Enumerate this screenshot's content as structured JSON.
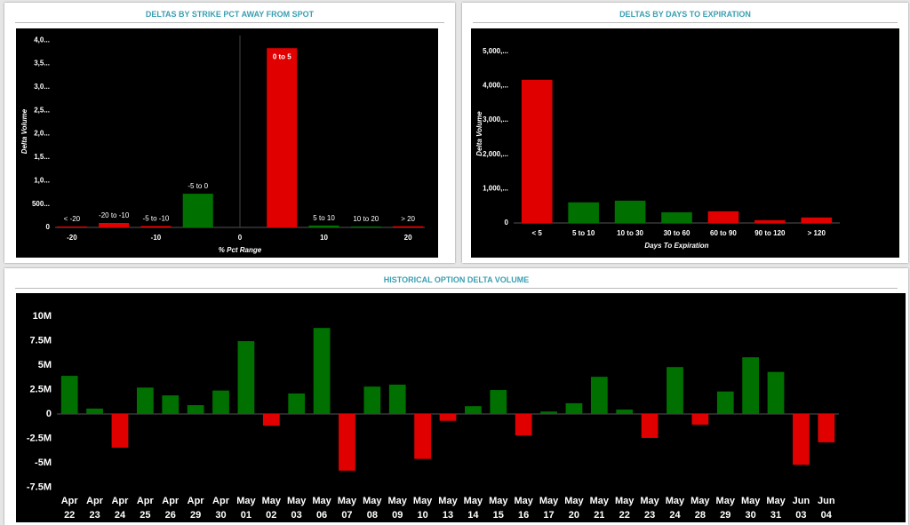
{
  "chart_data": [
    {
      "type": "bar",
      "title": "DELTAS BY STRIKE PCT AWAY FROM SPOT",
      "x_label": "% Pct Range",
      "y_label": "Delta Volume",
      "x": [
        -20,
        -15,
        -10,
        -5,
        5,
        10,
        15,
        20
      ],
      "bar_labels": [
        "< -20",
        "-20 to -10",
        "-5 to -10",
        "-5 to 0",
        "0 to 5",
        "5 to 10",
        "10 to 20",
        "> 20"
      ],
      "values": [
        20,
        95,
        30,
        720,
        3830,
        40,
        20,
        25
      ],
      "colors": [
        "#e00000",
        "#e00000",
        "#e00000",
        "#007000",
        "#e00000",
        "#007000",
        "#007000",
        "#e00000"
      ],
      "xlim": [
        -22,
        22
      ],
      "xticks": [
        -20,
        -10,
        0,
        10,
        20
      ],
      "ylim": [
        0,
        4100
      ],
      "yticks": [
        0,
        {
          "value": 500,
          "label": "500..."
        },
        {
          "value": 1000,
          "label": "1,0..."
        },
        {
          "value": 1500,
          "label": "1,5..."
        },
        {
          "value": 2000,
          "label": "2,0..."
        },
        {
          "value": 2500,
          "label": "2,5..."
        },
        {
          "value": 3000,
          "label": "3,0..."
        },
        {
          "value": 3500,
          "label": "3,5..."
        },
        {
          "value": 4000,
          "label": "4,0..."
        }
      ]
    },
    {
      "type": "bar",
      "title": "DELTAS BY DAYS TO EXPIRATION",
      "x_label": "Days To Expiration",
      "y_label": "Delta Volume",
      "categories": [
        "< 5",
        "5 to 10",
        "10 to 30",
        "30 to 60",
        "60 to 90",
        "90 to 120",
        "> 120"
      ],
      "values": [
        4170,
        600,
        650,
        310,
        340,
        80,
        160
      ],
      "colors": [
        "#e00000",
        "#007000",
        "#007000",
        "#007000",
        "#e00000",
        "#e00000",
        "#e00000"
      ],
      "ylim": [
        0,
        5200
      ],
      "yticks": [
        0,
        {
          "value": 1000,
          "label": "1,000,..."
        },
        {
          "value": 2000,
          "label": "2,000,..."
        },
        {
          "value": 3000,
          "label": "3,000,..."
        },
        {
          "value": 4000,
          "label": "4,000,..."
        },
        {
          "value": 5000,
          "label": "5,000,..."
        }
      ]
    },
    {
      "type": "bar",
      "title": "HISTORICAL OPTION DELTA VOLUME",
      "categories": [
        "Apr 22",
        "Apr 23",
        "Apr 24",
        "Apr 25",
        "Apr 26",
        "Apr 29",
        "Apr 30",
        "May 01",
        "May 02",
        "May 03",
        "May 06",
        "May 07",
        "May 08",
        "May 09",
        "May 10",
        "May 13",
        "May 14",
        "May 15",
        "May 16",
        "May 17",
        "May 20",
        "May 21",
        "May 22",
        "May 23",
        "May 24",
        "May 28",
        "May 29",
        "May 30",
        "May 31",
        "Jun 03",
        "Jun 04"
      ],
      "values": [
        3900000,
        550000,
        -3450000,
        2700000,
        1900000,
        900000,
        2400000,
        7450000,
        -1200000,
        2100000,
        8800000,
        -5800000,
        2800000,
        3000000,
        -4600000,
        -700000,
        800000,
        2450000,
        -2200000,
        250000,
        1100000,
        3800000,
        450000,
        -2450000,
        4800000,
        -1100000,
        2300000,
        5800000,
        4300000,
        -5200000,
        -2900000
      ],
      "positive_color": "#007000",
      "negative_color": "#e00000",
      "ylim": [
        -8000000,
        11000000
      ],
      "yticks": [
        {
          "value": -7500000,
          "label": "-7.5M"
        },
        {
          "value": -5000000,
          "label": "-5M"
        },
        {
          "value": -2500000,
          "label": "-2.5M"
        },
        0,
        {
          "value": 2500000,
          "label": "2.5M"
        },
        {
          "value": 5000000,
          "label": "5M"
        },
        {
          "value": 7500000,
          "label": "7.5M"
        },
        {
          "value": 10000000,
          "label": "10M"
        }
      ]
    }
  ]
}
